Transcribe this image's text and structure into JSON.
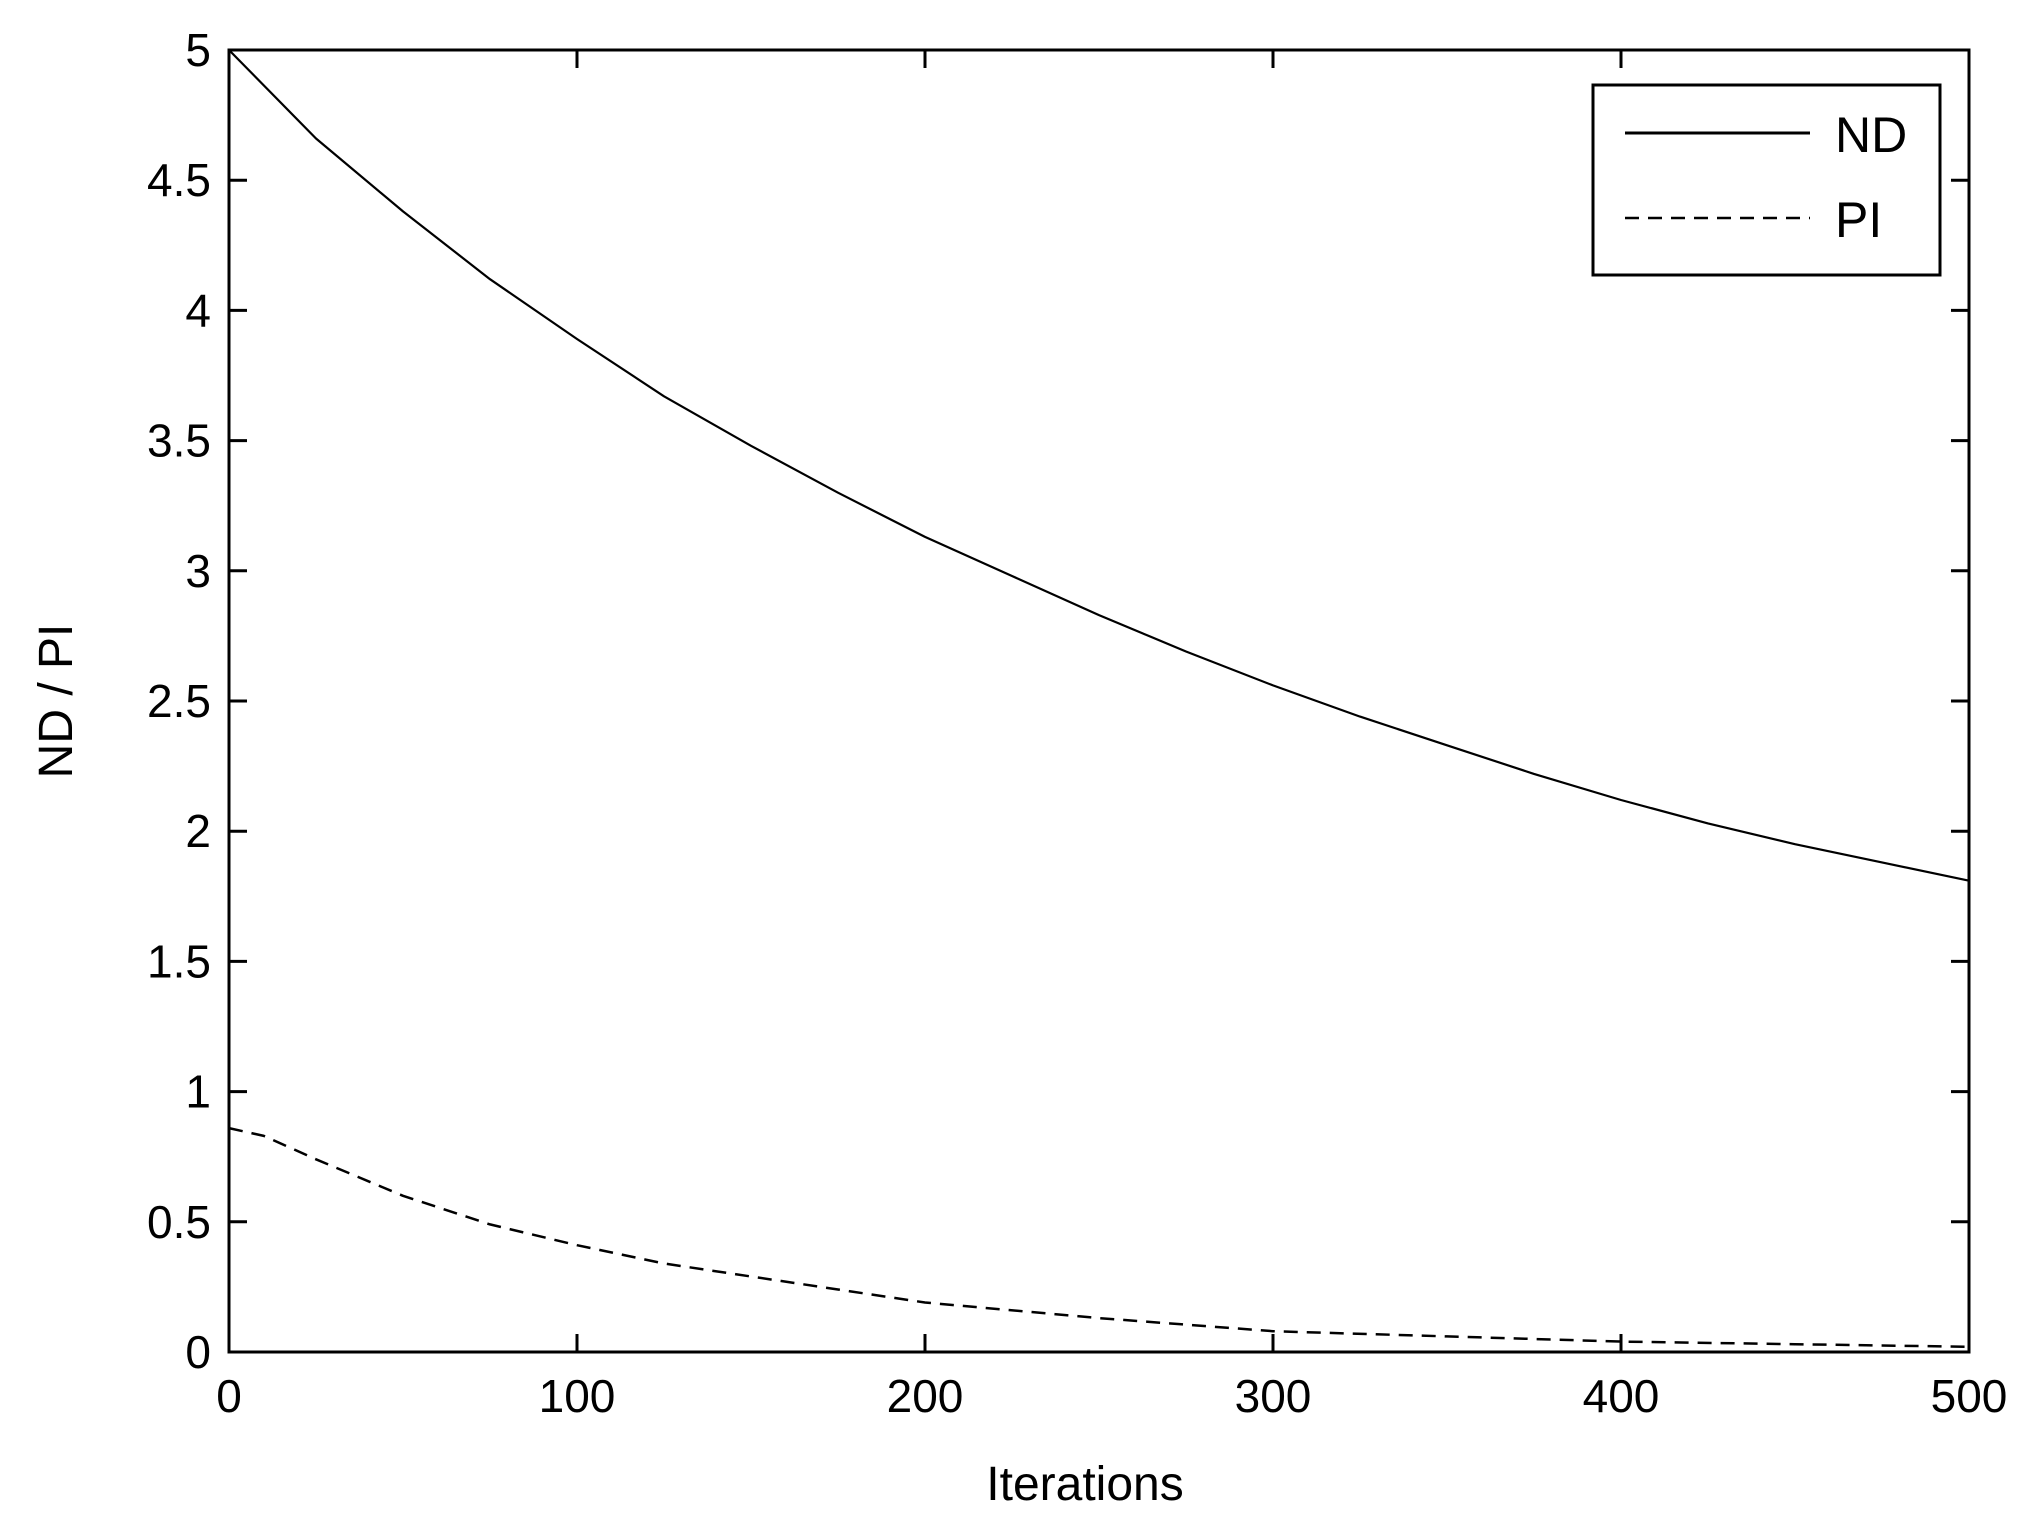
{
  "chart_data": {
    "type": "line",
    "title": "",
    "xlabel": "Iterations",
    "ylabel": "ND / PI",
    "xlim": [
      0,
      500
    ],
    "ylim": [
      0,
      5
    ],
    "xticks": [
      0,
      100,
      200,
      300,
      400,
      500
    ],
    "yticks": [
      0,
      0.5,
      1,
      1.5,
      2,
      2.5,
      3,
      3.5,
      4,
      4.5,
      5
    ],
    "xtick_labels": [
      "0",
      "100",
      "200",
      "300",
      "400",
      "500"
    ],
    "ytick_labels": [
      "0",
      "0.5",
      "1",
      "1.5",
      "2",
      "2.5",
      "3",
      "3.5",
      "4",
      "4.5",
      "5"
    ],
    "grid": false,
    "legend_position": "top-right",
    "series": [
      {
        "name": "ND",
        "style": "solid",
        "color": "#000000",
        "x": [
          0,
          25,
          50,
          75,
          100,
          125,
          150,
          175,
          200,
          225,
          250,
          275,
          300,
          325,
          350,
          375,
          400,
          425,
          450,
          475,
          500
        ],
        "y": [
          5.0,
          4.66,
          4.38,
          4.12,
          3.89,
          3.67,
          3.48,
          3.3,
          3.13,
          2.98,
          2.83,
          2.69,
          2.56,
          2.44,
          2.33,
          2.22,
          2.12,
          2.03,
          1.95,
          1.88,
          1.81
        ]
      },
      {
        "name": "PI",
        "style": "dashed",
        "color": "#000000",
        "x": [
          0,
          10,
          25,
          50,
          75,
          100,
          125,
          150,
          175,
          200,
          250,
          300,
          350,
          400,
          450,
          500
        ],
        "y": [
          0.86,
          0.83,
          0.74,
          0.6,
          0.49,
          0.41,
          0.34,
          0.29,
          0.24,
          0.19,
          0.13,
          0.08,
          0.06,
          0.04,
          0.03,
          0.02
        ]
      }
    ]
  }
}
